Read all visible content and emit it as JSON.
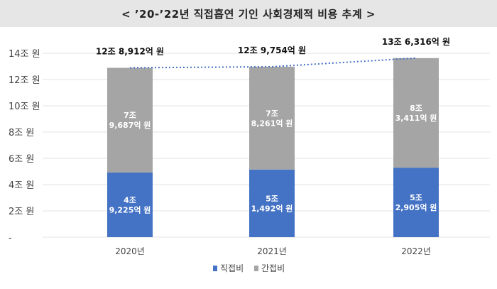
{
  "title": "< ’20-’22년 직접흡연 기인 사회경제적 비용 추계 >",
  "colors": {
    "direct": "#4472c4",
    "indirect": "#a5a5a5",
    "trend": "#4472c4"
  },
  "chart_data": {
    "type": "bar",
    "stacked": true,
    "categories": [
      "2020년",
      "2021년",
      "2022년"
    ],
    "unit": "억 원",
    "series": [
      {
        "name": "직접비",
        "values": [
          49225,
          51492,
          52905
        ],
        "labels": [
          "4조\n9,225억 원",
          "5조\n1,492억 원",
          "5조\n2,905억 원"
        ]
      },
      {
        "name": "간접비",
        "values": [
          79687,
          78261,
          83411
        ],
        "labels": [
          "7조\n9,687억 원",
          "7조\n8,261억 원",
          "8조\n3,411억 원"
        ]
      }
    ],
    "totals": [
      128912,
      129754,
      136316
    ],
    "total_labels": [
      "12조 8,912억 원",
      "12조 9,754억 원",
      "13조 6,316억 원"
    ],
    "trend_line": true,
    "yticks": [
      0,
      20000,
      40000,
      60000,
      80000,
      100000,
      120000,
      140000
    ],
    "ytick_labels": [
      "-",
      "2조 원",
      "4조 원",
      "6조 원",
      "8조 원",
      "10조 원",
      "12조 원",
      "14조 원"
    ],
    "ylim": [
      0,
      140000
    ],
    "grid": true,
    "legend": "bottom-center"
  }
}
